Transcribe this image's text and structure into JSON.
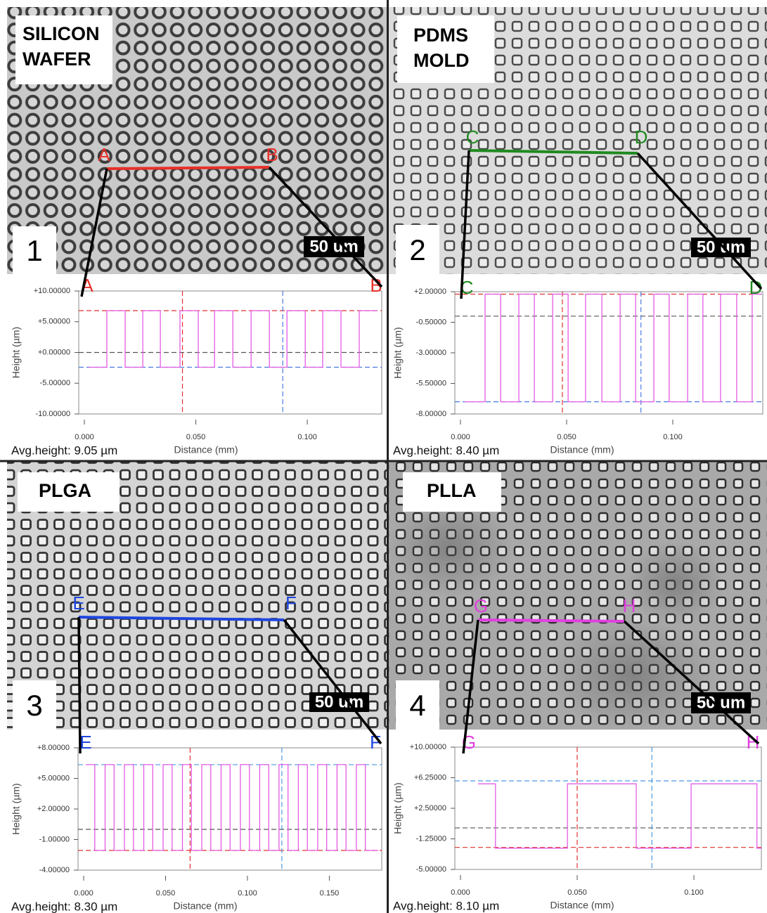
{
  "chart_data": [
    {
      "type": "line",
      "image_label": [
        "SILICON",
        "WAFER"
      ],
      "panel_number": "1",
      "scale_bar": "50 um",
      "point_labels": [
        "A",
        "B"
      ],
      "marker_color": "#e8302a",
      "annotation": "Avg.height: 9.05 µm",
      "xlabel": "Distance (mm)",
      "ylabel": "Height (µm)",
      "xlim": [
        0,
        0.1334
      ],
      "ylim": [
        -10,
        10
      ],
      "xticks": [
        {
          "value": 0,
          "label": "0.000"
        },
        {
          "value": 0.05,
          "label": "0.050"
        },
        {
          "value": 0.1,
          "label": "0.100"
        }
      ],
      "yticks": [
        {
          "value": 10,
          "label": "+10.00000"
        },
        {
          "value": 5,
          "label": "+5.00000"
        },
        {
          "value": 0,
          "label": "+0.00000"
        },
        {
          "value": -5,
          "label": "-5.00000"
        },
        {
          "value": -10,
          "label": "-10.00000"
        }
      ],
      "hlines": [
        {
          "value": 6.8,
          "color": "#e03030"
        },
        {
          "value": 0,
          "color": "#555555"
        },
        {
          "value": -2.4,
          "color": "#4a7ae0"
        }
      ],
      "vlines": [
        {
          "value": 0.044,
          "color": "#e03030"
        },
        {
          "value": 0.089,
          "color": "#4a7ae0"
        }
      ],
      "series": [
        {
          "color": "#e45ce4",
          "x": [
            0.002,
            0.0101,
            0.0101,
            0.0183,
            0.0183,
            0.0262,
            0.0262,
            0.0341,
            0.0341,
            0.0429,
            0.0429,
            0.0511,
            0.0511,
            0.0584,
            0.0584,
            0.0666,
            0.0666,
            0.0748,
            0.0748,
            0.083,
            0.083,
            0.0909,
            0.0909,
            0.0991,
            0.0991,
            0.1069,
            0.1069,
            0.1151,
            0.1151,
            0.1233,
            0.1233,
            0.1315
          ],
          "values": [
            -2.4,
            -2.4,
            6.8,
            6.8,
            -2.4,
            -2.4,
            6.8,
            6.8,
            -2.4,
            -2.4,
            6.8,
            6.8,
            -2.4,
            -2.4,
            6.8,
            6.8,
            -2.4,
            -2.4,
            6.8,
            6.8,
            -2.4,
            -2.4,
            6.8,
            6.8,
            -2.4,
            -2.4,
            6.8,
            6.8,
            -2.4,
            -2.4,
            6.8,
            6.8
          ]
        }
      ]
    },
    {
      "type": "line",
      "image_label": [
        "PDMS",
        "MOLD"
      ],
      "panel_number": "2",
      "scale_bar": "50 um",
      "point_labels": [
        "C",
        "D"
      ],
      "marker_color": "#1f8a1f",
      "annotation": "Avg.height: 8.40 µm",
      "xlabel": "Distance (mm)",
      "ylabel": "Height (µm)",
      "xlim": [
        0,
        0.1424
      ],
      "ylim": [
        -8,
        2
      ],
      "xticks": [
        {
          "value": 0,
          "label": "0.000"
        },
        {
          "value": 0.05,
          "label": "0.050"
        },
        {
          "value": 0.1,
          "label": "0.100"
        }
      ],
      "yticks": [
        {
          "value": 2,
          "label": "+2.00000"
        },
        {
          "value": -0.5,
          "label": "-0.50000"
        },
        {
          "value": -3,
          "label": "-3.00000"
        },
        {
          "value": -5.5,
          "label": "-5.50000"
        },
        {
          "value": -8,
          "label": "-8.00000"
        }
      ],
      "hlines": [
        {
          "value": 1.8,
          "color": "#e03030"
        },
        {
          "value": 0,
          "color": "#555555"
        },
        {
          "value": -7.0,
          "color": "#4a7ae0"
        }
      ],
      "vlines": [
        {
          "value": 0.048,
          "color": "#e03030"
        },
        {
          "value": 0.085,
          "color": "#4a7ae0"
        }
      ],
      "series": [
        {
          "color": "#e45ce4",
          "x": [
            0.002,
            0.0116,
            0.0116,
            0.0189,
            0.0189,
            0.0275,
            0.0275,
            0.0348,
            0.0348,
            0.0434,
            0.0434,
            0.0507,
            0.0507,
            0.0589,
            0.0589,
            0.0666,
            0.0666,
            0.0752,
            0.0752,
            0.0825,
            0.0825,
            0.0911,
            0.0911,
            0.0983,
            0.0983,
            0.107,
            0.107,
            0.1142,
            0.1142,
            0.1225,
            0.1225,
            0.1301,
            0.1301,
            0.1374,
            0.1374,
            0.142
          ],
          "values": [
            -7.0,
            -7.0,
            1.8,
            1.8,
            -7.0,
            -7.0,
            1.8,
            1.8,
            -7.0,
            -7.0,
            1.8,
            1.8,
            -7.0,
            -7.0,
            1.8,
            1.8,
            -7.0,
            -7.0,
            1.8,
            1.8,
            -7.0,
            -7.0,
            1.8,
            1.8,
            -7.0,
            -7.0,
            1.8,
            1.8,
            -7.0,
            -7.0,
            1.8,
            1.8,
            -7.0,
            -7.0,
            1.8,
            1.8
          ]
        }
      ]
    },
    {
      "type": "line",
      "image_label": [
        "PLGA"
      ],
      "panel_number": "3",
      "scale_bar": "50 um",
      "point_labels": [
        "E",
        "F"
      ],
      "marker_color": "#1e46e0",
      "annotation": "Avg.height: 8.30 µm",
      "xlabel": "Distance (mm)",
      "ylabel": "Height (µm)",
      "xlim": [
        0,
        0.182
      ],
      "ylim": [
        -4,
        8
      ],
      "xticks": [
        {
          "value": 0,
          "label": "0.000"
        },
        {
          "value": 0.05,
          "label": "0.050"
        },
        {
          "value": 0.1,
          "label": "0.100"
        },
        {
          "value": 0.15,
          "label": "0.150"
        }
      ],
      "yticks": [
        {
          "value": 8,
          "label": "+8.00000"
        },
        {
          "value": 5,
          "label": "+5.00000"
        },
        {
          "value": 2,
          "label": "+2.00000"
        },
        {
          "value": -1,
          "label": "-1.00000"
        },
        {
          "value": -4,
          "label": "-4.00000"
        }
      ],
      "hlines": [
        {
          "value": 6.35,
          "color": "#4a9ae0"
        },
        {
          "value": 0,
          "color": "#555555"
        },
        {
          "value": -2.07,
          "color": "#e03030"
        }
      ],
      "vlines": [
        {
          "value": 0.065,
          "color": "#e03030"
        },
        {
          "value": 0.121,
          "color": "#4a9ae0"
        }
      ],
      "series": [
        {
          "color": "#e45ce4",
          "x": [
            0.0013,
            0.0068,
            0.0068,
            0.0131,
            0.0131,
            0.0186,
            0.0186,
            0.0249,
            0.0249,
            0.0304,
            0.0304,
            0.0367,
            0.0367,
            0.0422,
            0.0422,
            0.0485,
            0.0485,
            0.054,
            0.054,
            0.0603,
            0.0603,
            0.0658,
            0.0658,
            0.0721,
            0.0721,
            0.0776,
            0.0776,
            0.0839,
            0.0839,
            0.0894,
            0.0894,
            0.0957,
            0.0957,
            0.1012,
            0.1012,
            0.1075,
            0.1075,
            0.113,
            0.113,
            0.1193,
            0.1193,
            0.1248,
            0.1248,
            0.1311,
            0.1311,
            0.1366,
            0.1366,
            0.1429,
            0.1429,
            0.1484,
            0.1484,
            0.1547,
            0.1547,
            0.1602,
            0.1602,
            0.1665,
            0.1665,
            0.172,
            0.172,
            0.18
          ],
          "values": [
            6.35,
            6.35,
            -2.07,
            -2.07,
            6.35,
            6.35,
            -2.07,
            -2.07,
            6.35,
            6.35,
            -2.07,
            -2.07,
            6.35,
            6.35,
            -2.07,
            -2.07,
            6.35,
            6.35,
            -2.07,
            -2.07,
            6.35,
            6.35,
            -2.07,
            -2.07,
            6.35,
            6.35,
            -2.07,
            -2.07,
            6.35,
            6.35,
            -2.07,
            -2.07,
            6.35,
            6.35,
            -2.07,
            -2.07,
            6.35,
            6.35,
            -2.07,
            -2.07,
            6.35,
            6.35,
            -2.07,
            -2.07,
            6.35,
            6.35,
            -2.07,
            -2.07,
            6.35,
            6.35,
            -2.07,
            -2.07,
            6.35,
            6.35,
            -2.07,
            -2.07,
            6.35,
            6.35,
            -2.07,
            -2.07
          ]
        }
      ]
    },
    {
      "type": "line",
      "image_label": [
        "PLLA"
      ],
      "panel_number": "4",
      "scale_bar": "50 um",
      "point_labels": [
        "G",
        "H"
      ],
      "marker_color": "#e040e0",
      "annotation": "Avg.height: 8.10 µm",
      "xlabel": "Distance (mm)",
      "ylabel": "Height (µm)",
      "xlim": [
        0,
        0.1289
      ],
      "ylim": [
        -5,
        10
      ],
      "xticks": [
        {
          "value": 0,
          "label": "0.000"
        },
        {
          "value": 0.05,
          "label": "0.050"
        },
        {
          "value": 0.1,
          "label": "0.100"
        }
      ],
      "yticks": [
        {
          "value": 10,
          "label": "+10.00000"
        },
        {
          "value": 6.25,
          "label": "+6.25000"
        },
        {
          "value": 2.5,
          "label": "+2.50000"
        },
        {
          "value": -1.25,
          "label": "-1.25000"
        },
        {
          "value": -5,
          "label": "-5.00000"
        }
      ],
      "hlines": [
        {
          "value": 5.86,
          "color": "#4a9ae0"
        },
        {
          "value": 0.09,
          "color": "#555555"
        },
        {
          "value": -2.3,
          "color": "#e03030"
        }
      ],
      "vlines": [
        {
          "value": 0.05,
          "color": "#e03030"
        },
        {
          "value": 0.082,
          "color": "#4a9ae0"
        }
      ],
      "series": [
        {
          "color": "#e45ce4",
          "x": [
            0.0075,
            0.015,
            0.015,
            0.0458,
            0.0458,
            0.0753,
            0.0753,
            0.0988,
            0.0988,
            0.127,
            0.127,
            0.129
          ],
          "values": [
            5.5,
            5.5,
            -2.4,
            -2.4,
            5.5,
            5.5,
            -2.4,
            -2.4,
            5.5,
            5.5,
            -2.4,
            -2.4
          ]
        }
      ]
    }
  ]
}
